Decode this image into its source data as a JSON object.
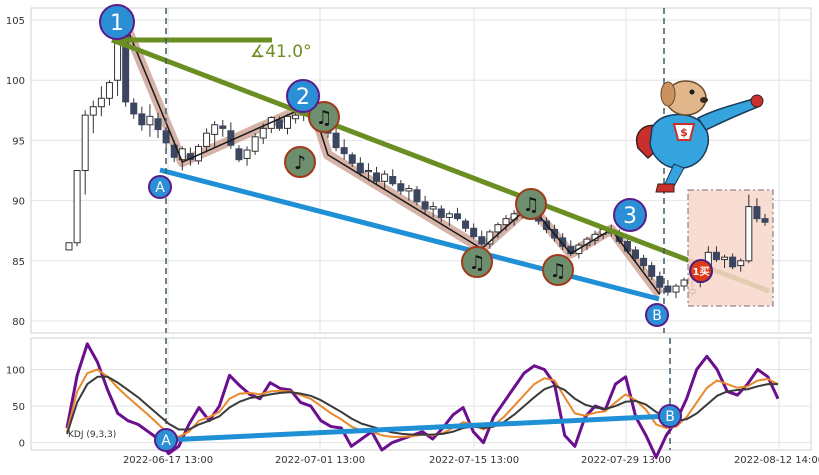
{
  "chart_data": [
    {
      "type": "candlestick",
      "panel": "price",
      "ylim": [
        79,
        106
      ],
      "ticks_y": [
        80,
        85,
        90,
        95,
        100,
        105
      ],
      "grid": true,
      "angle_label": "∡41.0°",
      "pattern_labels": [
        "1",
        "2",
        "3",
        "A",
        "B"
      ],
      "note_glyphs": [
        "♫",
        "♪",
        "♫",
        "♫",
        "♫",
        "♫"
      ],
      "buy_label": "1买",
      "colors": {
        "up_outline": "#333333",
        "down_fill": "#3c4660",
        "green_line": "#6b8e23",
        "blue_line": "#1f8fd6",
        "zigzag_halo": "#c8988a",
        "badge_fill": "#2b8fd6",
        "badge_border": "#5a1a8a",
        "note_fill": "#6e8f6e",
        "note_border": "#a03a1a",
        "box_fill": "#f9d8cc",
        "buy_fill": "#e03a1a",
        "dashed_marker": "#3d5a6b"
      },
      "candles": [
        [
          85.9,
          86.5,
          85.9,
          86.5
        ],
        [
          86.5,
          92.5,
          86.2,
          92.5
        ],
        [
          92.5,
          97.5,
          90.5,
          97.1
        ],
        [
          97.1,
          98.3,
          95.6,
          97.8
        ],
        [
          97.8,
          99.5,
          97.0,
          98.5
        ],
        [
          98.5,
          100.0,
          97.9,
          99.8
        ],
        [
          100.0,
          104.9,
          98.7,
          104.4
        ],
        [
          104.4,
          104.8,
          97.8,
          98.2
        ],
        [
          98.1,
          98.5,
          96.8,
          97.2
        ],
        [
          97.2,
          97.8,
          95.8,
          96.3
        ],
        [
          96.3,
          98.0,
          95.3,
          97.0
        ],
        [
          96.8,
          97.3,
          95.2,
          95.9
        ],
        [
          95.8,
          96.1,
          94.2,
          94.8
        ],
        [
          94.6,
          95.0,
          93.2,
          93.6
        ],
        [
          93.4,
          94.5,
          92.5,
          94.3
        ],
        [
          93.9,
          94.4,
          92.9,
          93.4
        ],
        [
          93.3,
          94.7,
          93.0,
          94.5
        ],
        [
          94.5,
          96.0,
          94.0,
          95.6
        ],
        [
          95.5,
          96.6,
          94.4,
          96.3
        ],
        [
          96.2,
          96.7,
          95.3,
          96.0
        ],
        [
          95.8,
          96.5,
          94.3,
          94.6
        ],
        [
          94.3,
          94.6,
          93.2,
          93.4
        ],
        [
          93.5,
          94.5,
          92.9,
          94.2
        ],
        [
          94.1,
          95.6,
          93.8,
          95.3
        ],
        [
          95.2,
          96.4,
          94.7,
          96.0
        ],
        [
          96.0,
          97.0,
          95.6,
          96.9
        ],
        [
          96.7,
          97.0,
          95.8,
          96.0
        ],
        [
          96.0,
          97.2,
          95.5,
          97.0
        ],
        [
          96.8,
          97.5,
          96.4,
          97.1
        ],
        [
          97.1,
          98.0,
          96.6,
          97.7
        ],
        [
          97.6,
          98.0,
          96.8,
          97.3
        ],
        [
          97.3,
          98.2,
          96.2,
          96.4
        ],
        [
          96.4,
          97.0,
          95.2,
          95.6
        ],
        [
          95.6,
          96.2,
          94.1,
          94.4
        ],
        [
          94.4,
          95.1,
          93.4,
          93.9
        ],
        [
          93.8,
          94.0,
          92.8,
          93.1
        ],
        [
          93.1,
          93.6,
          92.0,
          92.3
        ],
        [
          92.4,
          93.1,
          91.6,
          92.5
        ],
        [
          92.3,
          92.8,
          91.3,
          91.6
        ],
        [
          91.6,
          92.5,
          91.0,
          92.2
        ],
        [
          92.0,
          92.6,
          91.2,
          91.4
        ],
        [
          91.4,
          91.7,
          90.5,
          90.8
        ],
        [
          90.8,
          91.3,
          90.0,
          91.0
        ],
        [
          90.9,
          91.2,
          89.6,
          89.9
        ],
        [
          89.9,
          90.4,
          88.9,
          89.3
        ],
        [
          89.3,
          89.9,
          88.6,
          89.5
        ],
        [
          89.3,
          89.6,
          88.2,
          88.6
        ],
        [
          88.6,
          89.1,
          87.9,
          88.9
        ],
        [
          88.9,
          89.4,
          88.3,
          88.5
        ],
        [
          88.3,
          88.5,
          87.4,
          87.7
        ],
        [
          87.7,
          88.1,
          86.8,
          87.0
        ],
        [
          87.0,
          87.5,
          86.0,
          86.4
        ],
        [
          86.4,
          87.6,
          86.0,
          87.4
        ],
        [
          87.4,
          88.2,
          86.9,
          88.0
        ],
        [
          88.0,
          88.8,
          87.5,
          88.5
        ],
        [
          88.4,
          89.2,
          87.9,
          88.9
        ],
        [
          88.9,
          89.8,
          88.5,
          89.6
        ],
        [
          89.5,
          90.2,
          88.8,
          89.1
        ],
        [
          89.0,
          89.3,
          88.0,
          88.3
        ],
        [
          88.3,
          88.6,
          87.3,
          87.6
        ],
        [
          87.6,
          88.0,
          86.6,
          86.9
        ],
        [
          86.9,
          87.3,
          85.9,
          86.2
        ],
        [
          86.2,
          86.7,
          85.4,
          85.6
        ],
        [
          85.6,
          86.5,
          85.2,
          86.3
        ],
        [
          86.3,
          87.0,
          85.9,
          86.8
        ],
        [
          86.7,
          87.5,
          86.3,
          87.2
        ],
        [
          87.2,
          87.9,
          86.8,
          87.6
        ],
        [
          87.6,
          88.0,
          87.0,
          87.3
        ],
        [
          87.3,
          87.6,
          86.4,
          86.6
        ],
        [
          86.6,
          87.0,
          85.6,
          85.8
        ],
        [
          85.9,
          86.2,
          84.9,
          85.2
        ],
        [
          85.2,
          85.5,
          84.2,
          84.6
        ],
        [
          84.6,
          84.9,
          83.4,
          83.7
        ],
        [
          83.7,
          84.1,
          82.3,
          82.8
        ],
        [
          82.9,
          83.4,
          82.1,
          82.4
        ],
        [
          82.4,
          83.1,
          81.9,
          82.9
        ],
        [
          82.9,
          83.6,
          82.5,
          83.4
        ],
        [
          82.3,
          83.8,
          82.0,
          82.6
        ],
        [
          83.2,
          84.8,
          82.8,
          84.3
        ],
        [
          84.3,
          86.2,
          83.8,
          85.7
        ],
        [
          85.7,
          86.2,
          84.9,
          85.1
        ],
        [
          85.1,
          85.5,
          84.4,
          85.3
        ],
        [
          85.3,
          85.6,
          84.3,
          84.5
        ],
        [
          84.6,
          85.2,
          84.1,
          85.0
        ],
        [
          85.0,
          90.5,
          84.8,
          89.5
        ],
        [
          89.5,
          90.2,
          88.2,
          88.5
        ],
        [
          88.5,
          88.9,
          87.9,
          88.2
        ]
      ]
    },
    {
      "type": "line",
      "panel": "kdj",
      "label": "KDJ (9,3,3)",
      "ylim": [
        -10,
        143
      ],
      "ticks_y": [
        0,
        50,
        100
      ],
      "x_tick_labels": [
        "2022-06-17 13:00",
        "2022-07-01 13:00",
        "2022-07-15 13:00",
        "2022-07-29 13:00",
        "2022-08-12 14:00"
      ],
      "series": [
        {
          "color": "#6a0f8e",
          "values": [
            20,
            92,
            135,
            110,
            72,
            40,
            30,
            25,
            15,
            5,
            -15,
            -5,
            25,
            48,
            30,
            50,
            92,
            78,
            66,
            60,
            82,
            74,
            72,
            55,
            50,
            30,
            22,
            20,
            -5,
            5,
            15,
            -10,
            0,
            5,
            10,
            15,
            5,
            20,
            38,
            48,
            15,
            0,
            35,
            55,
            75,
            95,
            105,
            100,
            80,
            10,
            -5,
            35,
            50,
            45,
            80,
            90,
            35,
            10,
            -20,
            10,
            30,
            60,
            100,
            118,
            100,
            70,
            65,
            80,
            100,
            90,
            60
          ]
        },
        {
          "color": "#e8892e",
          "values": [
            15,
            70,
            95,
            100,
            90,
            75,
            62,
            50,
            38,
            25,
            12,
            8,
            15,
            30,
            35,
            42,
            60,
            67,
            68,
            66,
            70,
            71,
            70,
            65,
            60,
            50,
            40,
            32,
            22,
            16,
            15,
            10,
            8,
            8,
            9,
            11,
            10,
            13,
            20,
            28,
            25,
            18,
            24,
            35,
            50,
            65,
            80,
            88,
            85,
            62,
            40,
            37,
            41,
            43,
            55,
            66,
            58,
            45,
            25,
            20,
            22,
            35,
            55,
            75,
            85,
            80,
            75,
            77,
            85,
            87,
            80
          ]
        },
        {
          "color": "#3a3a3a",
          "values": [
            12,
            55,
            80,
            90,
            90,
            82,
            72,
            62,
            50,
            38,
            26,
            18,
            18,
            25,
            30,
            36,
            48,
            56,
            61,
            63,
            66,
            68,
            69,
            67,
            64,
            58,
            50,
            42,
            33,
            26,
            22,
            18,
            14,
            12,
            11,
            11,
            11,
            12,
            15,
            20,
            22,
            20,
            22,
            28,
            38,
            50,
            62,
            73,
            78,
            72,
            60,
            52,
            48,
            46,
            50,
            56,
            57,
            52,
            42,
            34,
            30,
            32,
            40,
            52,
            64,
            70,
            72,
            73,
            77,
            80,
            80
          ]
        }
      ]
    }
  ]
}
